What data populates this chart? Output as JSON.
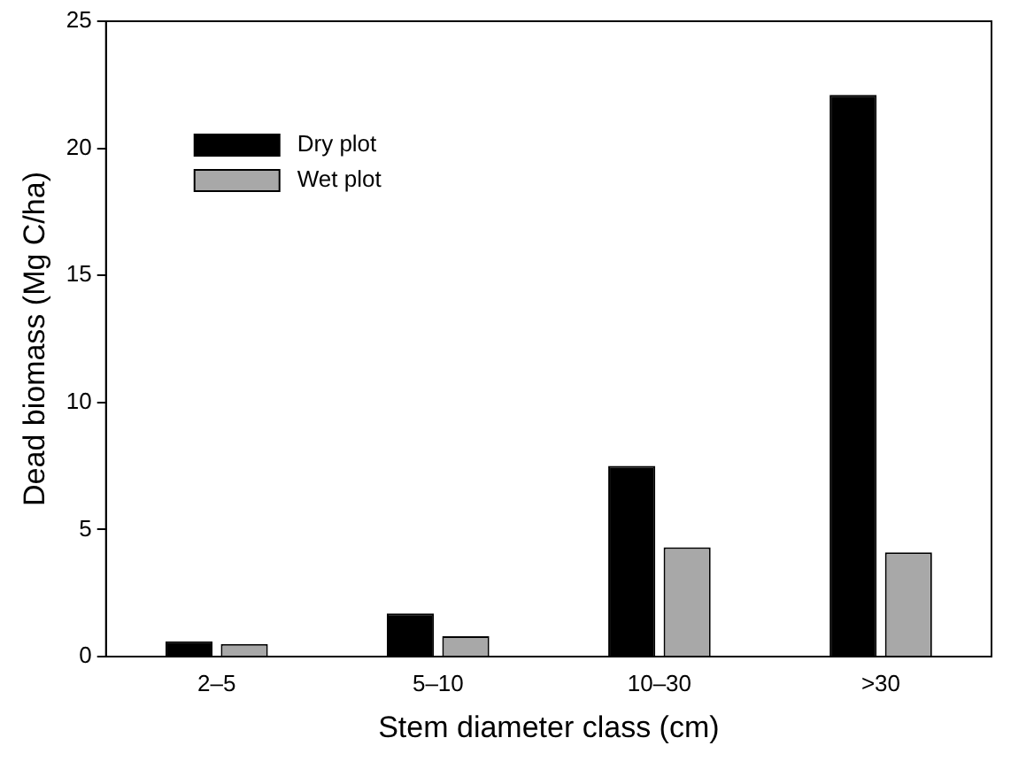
{
  "chart_data": {
    "type": "bar",
    "xlabel": "Stem diameter class (cm)",
    "ylabel": "Dead biomass (Mg C/ha)",
    "categories": [
      "2–5",
      "5–10",
      "10–30",
      ">30"
    ],
    "series": [
      {
        "name": "Dry plot",
        "color": "#000000",
        "values": [
          0.6,
          1.7,
          7.5,
          22.1
        ]
      },
      {
        "name": "Wet plot",
        "color": "#a8a8a8",
        "values": [
          0.5,
          0.8,
          4.3,
          4.1
        ]
      }
    ],
    "ylim": [
      0,
      25
    ],
    "yticks": [
      0,
      5,
      10,
      15,
      20,
      25
    ],
    "grid": false,
    "legend": "top left"
  }
}
